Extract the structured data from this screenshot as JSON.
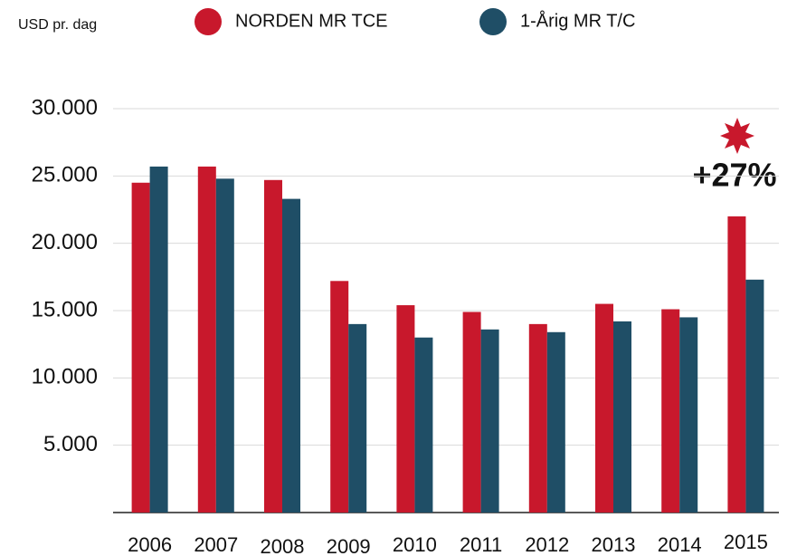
{
  "chart_data": {
    "type": "bar",
    "y_label": "USD pr. dag",
    "annotation": "+27%",
    "categories": [
      "2006",
      "2007",
      "2008",
      "2009",
      "2010",
      "2011",
      "2012",
      "2013",
      "2014",
      "2015"
    ],
    "series": [
      {
        "name": "NORDEN MR TCE",
        "color": "#c8182c",
        "values": [
          24500,
          25700,
          24700,
          17200,
          15400,
          14900,
          14000,
          15500,
          15100,
          22000
        ]
      },
      {
        "name": "1-Årig MR T/C",
        "color": "#1f4e66",
        "values": [
          25700,
          24800,
          23300,
          14000,
          13000,
          13600,
          13400,
          14200,
          14500,
          17300
        ]
      }
    ],
    "ylim": [
      0,
      30000
    ],
    "yticks": [
      {
        "value": 5000,
        "label": "5.000"
      },
      {
        "value": 10000,
        "label": "10.000"
      },
      {
        "value": 15000,
        "label": "15.000"
      },
      {
        "value": 20000,
        "label": "20.000"
      },
      {
        "value": 25000,
        "label": "25.000"
      },
      {
        "value": 30000,
        "label": "30.000"
      }
    ],
    "grid": true
  }
}
